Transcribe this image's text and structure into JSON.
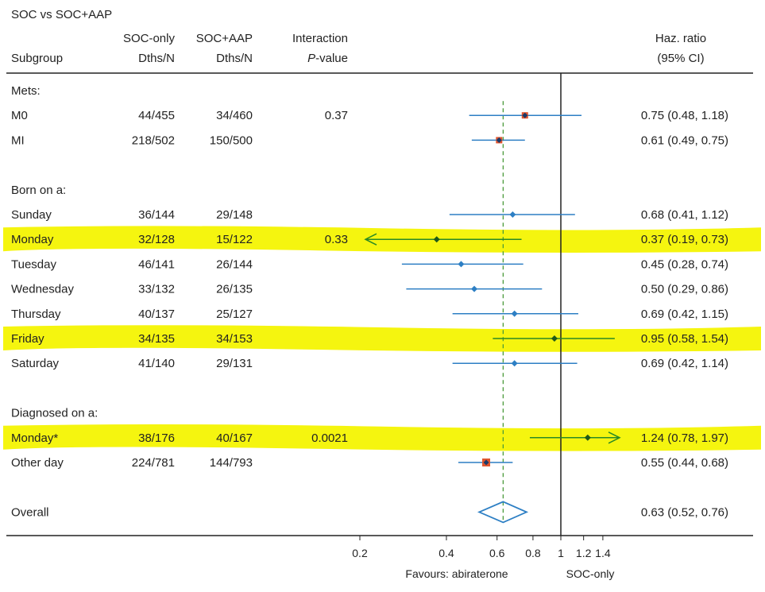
{
  "header": {
    "title": "SOC vs SOC+AAP",
    "col1_line1": "SOC-only",
    "col1_line2": "Dths/N",
    "col2_line1": "SOC+AAP",
    "col2_line2": "Dths/N",
    "col3_line1": "Interaction",
    "col3_line2_italic": "P",
    "col3_line2_rest": "-value",
    "subgroup": "Subgroup",
    "hr_line1": "Haz. ratio",
    "hr_line2": "(95% CI)"
  },
  "colors": {
    "blue": "#2d7fc4",
    "green": "#2b8a24",
    "dark_marker": "#1a3a6a",
    "red_square": "#e0552f",
    "highlight": "#f5f50f",
    "axis": "#222222",
    "ref_dash": "#4a9a3a"
  },
  "chart_data": {
    "type": "forest",
    "x_scale": "log",
    "xlim": [
      0.2,
      1.4
    ],
    "x_ticks": [
      "0.2",
      "0.4",
      "0.6",
      "0.8",
      "1",
      "1.2",
      "1.4"
    ],
    "x_tick_values": [
      0.2,
      0.4,
      0.6,
      0.8,
      1,
      1.2,
      1.4
    ],
    "reference_line": 1,
    "overall_reference": 0.63,
    "xlabel_left": "Favours: abiraterone",
    "xlabel_right": "SOC-only",
    "rows": [
      {
        "type": "header",
        "label": "Mets:"
      },
      {
        "type": "data",
        "label": "M0",
        "soc": "44/455",
        "aap": "34/460",
        "p": "0.37",
        "hr": 0.75,
        "lo": 0.48,
        "hi": 1.18,
        "hr_text": "0.75 (0.48, 1.18)",
        "marker": "square",
        "color": "blue",
        "highlight": false
      },
      {
        "type": "data",
        "label": "MI",
        "soc": "218/502",
        "aap": "150/500",
        "p": "",
        "hr": 0.61,
        "lo": 0.49,
        "hi": 0.75,
        "hr_text": "0.61 (0.49, 0.75)",
        "marker": "square",
        "color": "blue",
        "highlight": false
      },
      {
        "type": "spacer"
      },
      {
        "type": "header",
        "label": "Born on a:"
      },
      {
        "type": "data",
        "label": "Sunday",
        "soc": "36/144",
        "aap": "29/148",
        "p": "",
        "hr": 0.68,
        "lo": 0.41,
        "hi": 1.12,
        "hr_text": "0.68 (0.41, 1.12)",
        "marker": "diamond",
        "color": "blue",
        "highlight": false
      },
      {
        "type": "data",
        "label": "Monday",
        "soc": "32/128",
        "aap": "15/122",
        "p": "0.33",
        "hr": 0.37,
        "lo": 0.19,
        "hi": 0.73,
        "hr_text": "0.37 (0.19, 0.73)",
        "marker": "diamond",
        "color": "green",
        "highlight": true,
        "arrow_left": true
      },
      {
        "type": "data",
        "label": "Tuesday",
        "soc": "46/141",
        "aap": "26/144",
        "p": "",
        "hr": 0.45,
        "lo": 0.28,
        "hi": 0.74,
        "hr_text": "0.45 (0.28, 0.74)",
        "marker": "diamond",
        "color": "blue",
        "highlight": false
      },
      {
        "type": "data",
        "label": "Wednesday",
        "soc": "33/132",
        "aap": "26/135",
        "p": "",
        "hr": 0.5,
        "lo": 0.29,
        "hi": 0.86,
        "hr_text": "0.50 (0.29, 0.86)",
        "marker": "diamond",
        "color": "blue",
        "highlight": false
      },
      {
        "type": "data",
        "label": "Thursday",
        "soc": "40/137",
        "aap": "25/127",
        "p": "",
        "hr": 0.69,
        "lo": 0.42,
        "hi": 1.15,
        "hr_text": "0.69 (0.42, 1.15)",
        "marker": "diamond",
        "color": "blue",
        "highlight": false
      },
      {
        "type": "data",
        "label": "Friday",
        "soc": "34/135",
        "aap": "34/153",
        "p": "",
        "hr": 0.95,
        "lo": 0.58,
        "hi": 1.54,
        "hr_text": "0.95 (0.58, 1.54)",
        "marker": "diamond",
        "color": "green",
        "highlight": true
      },
      {
        "type": "data",
        "label": "Saturday",
        "soc": "41/140",
        "aap": "29/131",
        "p": "",
        "hr": 0.69,
        "lo": 0.42,
        "hi": 1.14,
        "hr_text": "0.69 (0.42, 1.14)",
        "marker": "diamond",
        "color": "blue",
        "highlight": false
      },
      {
        "type": "spacer"
      },
      {
        "type": "header",
        "label": "Diagnosed on a:"
      },
      {
        "type": "data",
        "label": "Monday*",
        "soc": "38/176",
        "aap": "40/167",
        "p": "0.0021",
        "hr": 1.24,
        "lo": 0.78,
        "hi": 1.97,
        "hr_text": "1.24 (0.78, 1.97)",
        "marker": "diamond",
        "color": "green",
        "highlight": true,
        "arrow_right": true
      },
      {
        "type": "data",
        "label": "Other day",
        "soc": "224/781",
        "aap": "144/793",
        "p": "",
        "hr": 0.55,
        "lo": 0.44,
        "hi": 0.68,
        "hr_text": "0.55 (0.44, 0.68)",
        "marker": "square",
        "color": "blue",
        "highlight": false
      },
      {
        "type": "spacer"
      },
      {
        "type": "overall",
        "label": "Overall",
        "hr": 0.63,
        "lo": 0.52,
        "hi": 0.76,
        "hr_text": "0.63 (0.52, 0.76)"
      }
    ]
  }
}
